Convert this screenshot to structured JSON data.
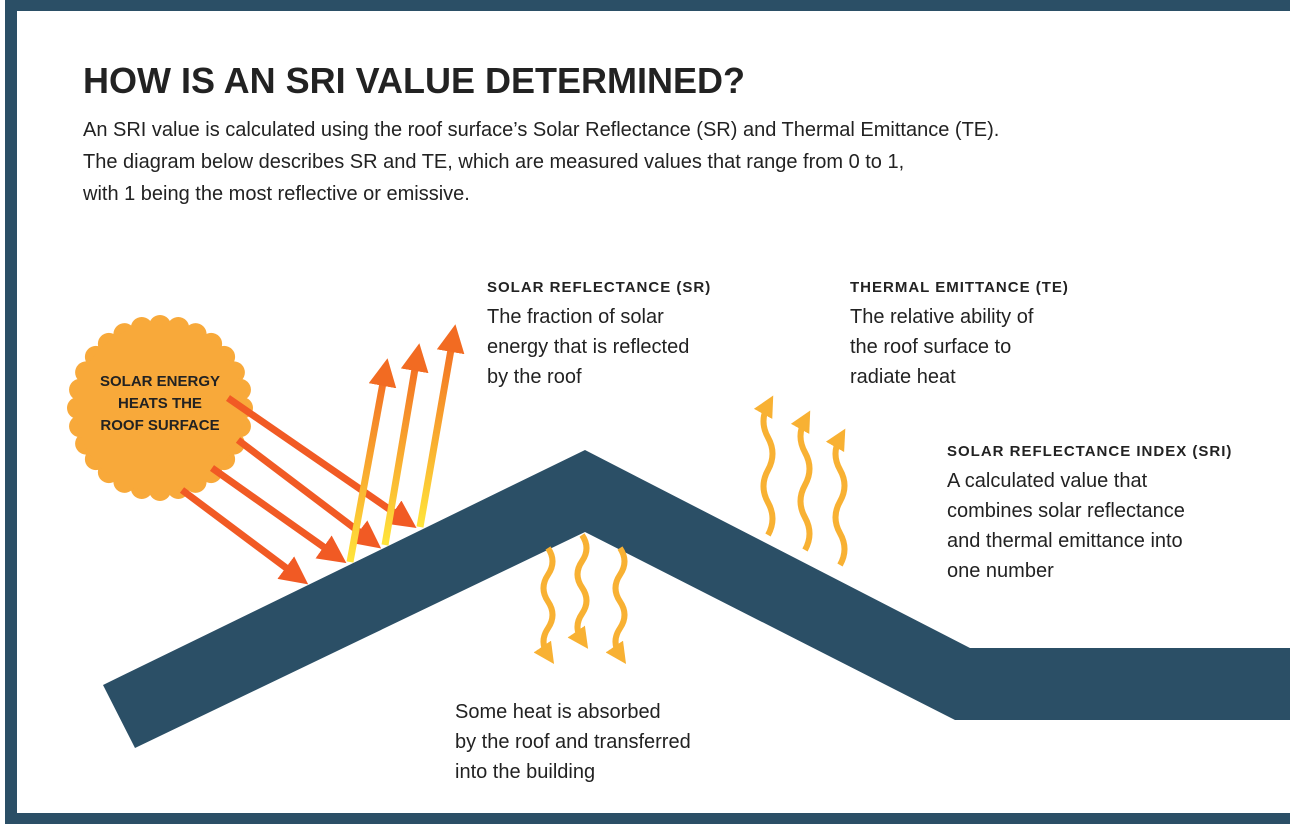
{
  "header": {
    "title": "HOW IS AN SRI VALUE DETERMINED?",
    "intro": [
      "An SRI value is calculated using the roof surface’s Solar Reflectance (SR) and Thermal Emittance (TE).",
      "The diagram below describes SR and TE, which are measured values that range from 0 to 1,",
      "with 1 being the most reflective or emissive."
    ]
  },
  "sun": {
    "label": [
      "SOLAR ENERGY",
      "HEATS THE",
      "ROOF SURFACE"
    ]
  },
  "labels": [
    {
      "heading": "SOLAR REFLECTANCE (SR)",
      "body": [
        "The fraction of solar",
        "energy that is reflected",
        "by the roof"
      ]
    },
    {
      "heading": "THERMAL EMITTANCE (TE)",
      "body": [
        "The relative ability of",
        "the roof surface to",
        "radiate heat"
      ]
    },
    {
      "heading": "SOLAR REFLECTANCE INDEX (SRI)",
      "body": [
        "A calculated value that",
        "combines solar reflectance",
        "and thermal emittance into",
        "one number"
      ]
    }
  ],
  "absorbed": {
    "body": [
      "Some heat is absorbed",
      "by the roof and transferred",
      "into the building"
    ]
  }
}
